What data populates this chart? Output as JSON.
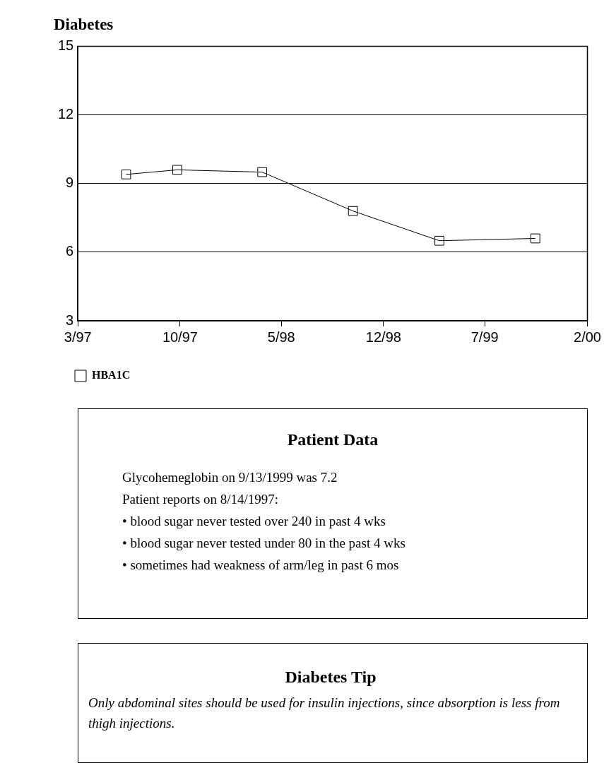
{
  "chart_data": [
    {
      "type": "line",
      "title": "Diabetes",
      "x": [
        "1997-06-10",
        "1997-09-25",
        "1998-03-22",
        "1998-09-28",
        "1999-03-28",
        "1999-10-15"
      ],
      "series": [
        {
          "name": "HBA1C",
          "color": "#000000",
          "values": [
            9.4,
            9.6,
            9.5,
            7.8,
            6.5,
            6.6
          ]
        }
      ],
      "xlim": [
        "1997-03",
        "2000-02"
      ],
      "xticks": [
        {
          "value": "1997-03",
          "label": "3/97"
        },
        {
          "value": "1997-10",
          "label": "10/97"
        },
        {
          "value": "1998-05",
          "label": "5/98"
        },
        {
          "value": "1998-12",
          "label": "12/98"
        },
        {
          "value": "1999-07",
          "label": "7/99"
        },
        {
          "value": "2000-02",
          "label": "2/00"
        }
      ],
      "ylim": [
        3,
        15
      ],
      "yticks": [
        3,
        6,
        9,
        12,
        15
      ],
      "grid": "y",
      "legend": "bottom left",
      "marker": "square",
      "line_style": "solid"
    },
    {
      "type": "other",
      "title": "Patient Data",
      "annotations": [
        "Glycohemeglobin on 9/13/1999 was 7.2",
        "Patient reports on 8/14/1997:",
        "• blood sugar never tested over 240 in past 4 wks",
        "• blood sugar never tested under 80 in the past 4 wks",
        "• sometimes had weakness of arm/leg in past 6 mos"
      ]
    },
    {
      "type": "other",
      "title": "Diabetes Tip",
      "annotations": [
        "Only abdominal sites should be used for insulin injections, since absorption is less from thigh injections."
      ]
    }
  ]
}
